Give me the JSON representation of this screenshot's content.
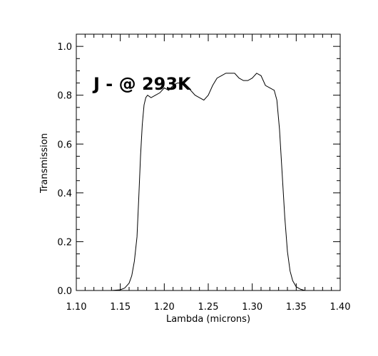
{
  "chart_data": {
    "type": "line",
    "xlabel": "Lambda (microns)",
    "ylabel": "Transmission",
    "annotations": [
      "J - @ 293K"
    ],
    "xlim": [
      1.1,
      1.4
    ],
    "ylim": [
      0.0,
      1.05
    ],
    "x_ticks": [
      "1.10",
      "1.15",
      "1.20",
      "1.25",
      "1.30",
      "1.35",
      "1.40"
    ],
    "y_ticks": [
      "0.0",
      "0.2",
      "0.4",
      "0.6",
      "0.8",
      "1.0"
    ],
    "grid": false,
    "series": [
      {
        "x": [
          1.1,
          1.12,
          1.14,
          1.15,
          1.155,
          1.16,
          1.163,
          1.166,
          1.169,
          1.171,
          1.173,
          1.175,
          1.177,
          1.179,
          1.181,
          1.185,
          1.19,
          1.195,
          1.2,
          1.205,
          1.21,
          1.215,
          1.22,
          1.225,
          1.23,
          1.235,
          1.24,
          1.245,
          1.25,
          1.255,
          1.26,
          1.265,
          1.27,
          1.275,
          1.28,
          1.285,
          1.29,
          1.295,
          1.3,
          1.305,
          1.31,
          1.315,
          1.32,
          1.325,
          1.328,
          1.331,
          1.334,
          1.337,
          1.34,
          1.343,
          1.346,
          1.35,
          1.355,
          1.36,
          1.37,
          1.38,
          1.4
        ],
        "y": [
          0.0,
          0.0,
          0.0,
          0.003,
          0.01,
          0.03,
          0.06,
          0.12,
          0.22,
          0.38,
          0.55,
          0.68,
          0.76,
          0.79,
          0.8,
          0.79,
          0.8,
          0.81,
          0.83,
          0.82,
          0.84,
          0.85,
          0.85,
          0.84,
          0.82,
          0.8,
          0.79,
          0.78,
          0.8,
          0.84,
          0.87,
          0.88,
          0.89,
          0.89,
          0.89,
          0.87,
          0.86,
          0.86,
          0.87,
          0.89,
          0.88,
          0.84,
          0.83,
          0.82,
          0.78,
          0.66,
          0.48,
          0.3,
          0.16,
          0.08,
          0.04,
          0.015,
          0.005,
          0.0,
          0.0,
          0.0,
          0.0
        ]
      }
    ]
  }
}
